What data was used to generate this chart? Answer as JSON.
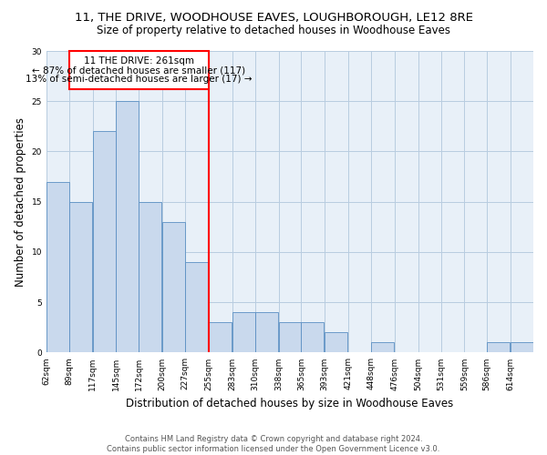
{
  "title": "11, THE DRIVE, WOODHOUSE EAVES, LOUGHBOROUGH, LE12 8RE",
  "subtitle": "Size of property relative to detached houses in Woodhouse Eaves",
  "xlabel": "Distribution of detached houses by size in Woodhouse Eaves",
  "ylabel": "Number of detached properties",
  "footer_line1": "Contains HM Land Registry data © Crown copyright and database right 2024.",
  "footer_line2": "Contains public sector information licensed under the Open Government Licence v3.0.",
  "categories": [
    "62sqm",
    "89sqm",
    "117sqm",
    "145sqm",
    "172sqm",
    "200sqm",
    "227sqm",
    "255sqm",
    "283sqm",
    "310sqm",
    "338sqm",
    "365sqm",
    "393sqm",
    "421sqm",
    "448sqm",
    "476sqm",
    "504sqm",
    "531sqm",
    "559sqm",
    "586sqm",
    "614sqm"
  ],
  "values": [
    17,
    15,
    22,
    25,
    15,
    13,
    9,
    3,
    4,
    4,
    3,
    3,
    2,
    0,
    1,
    0,
    0,
    0,
    0,
    1,
    1
  ],
  "bar_color": "#c9d9ed",
  "bar_edge_color": "#5a8fc3",
  "bg_color": "#e8f0f8",
  "grid_color": "#b8cce0",
  "property_line_label": "11 THE DRIVE: 261sqm",
  "annotation_line2": "← 87% of detached houses are smaller (117)",
  "annotation_line3": "13% of semi-detached houses are larger (17) →",
  "annotation_box_color": "white",
  "annotation_box_edge_color": "red",
  "vline_color": "red",
  "ylim": [
    0,
    30
  ],
  "yticks": [
    0,
    5,
    10,
    15,
    20,
    25,
    30
  ],
  "centers": [
    62,
    89,
    117,
    145,
    172,
    200,
    227,
    255,
    283,
    310,
    338,
    365,
    393,
    421,
    448,
    476,
    504,
    531,
    559,
    586,
    614
  ],
  "bw": 27,
  "title_fontsize": 9.5,
  "subtitle_fontsize": 8.5,
  "ylabel_fontsize": 8.5,
  "xlabel_fontsize": 8.5,
  "tick_fontsize": 6.5,
  "footer_fontsize": 6.0,
  "annot_fontsize": 7.5
}
